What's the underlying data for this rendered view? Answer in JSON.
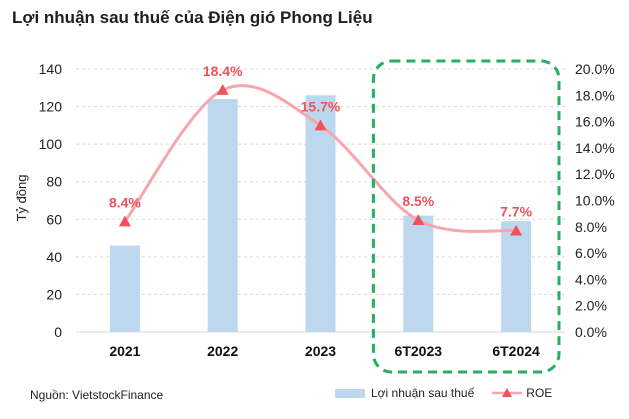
{
  "title": "Lợi nhuận sau thuế của Điện gió Phong Liệu",
  "source": "Nguồn: VietstockFinance",
  "chart_data": {
    "type": "bar+line",
    "categories": [
      "2021",
      "2022",
      "2023",
      "6T2023",
      "6T2024"
    ],
    "series": [
      {
        "name": "Lợi nhuận sau thuế",
        "type": "bar",
        "axis": "left",
        "color": "#bdd7ee",
        "values": [
          46,
          124,
          126,
          62,
          59
        ]
      },
      {
        "name": "ROE",
        "type": "line",
        "axis": "right",
        "color": "#f7a7ab",
        "marker_color": "#f0525b",
        "values": [
          8.4,
          18.4,
          15.7,
          8.5,
          7.7
        ],
        "labels": [
          "8.4%",
          "18.4%",
          "15.7%",
          "8.5%",
          "7.7%"
        ]
      }
    ],
    "ylabel": "Tỷ đồng",
    "ylim": [
      0,
      140
    ],
    "yticks": [
      "0",
      "20",
      "40",
      "60",
      "80",
      "100",
      "120",
      "140"
    ],
    "y2lim": [
      0,
      20
    ],
    "y2ticks": [
      "0.0%",
      "2.0%",
      "4.0%",
      "6.0%",
      "8.0%",
      "10.0%",
      "12.0%",
      "14.0%",
      "16.0%",
      "18.0%",
      "20.0%"
    ],
    "grid": true,
    "legend": "bottom-right",
    "highlight_color": "#27ae60"
  }
}
